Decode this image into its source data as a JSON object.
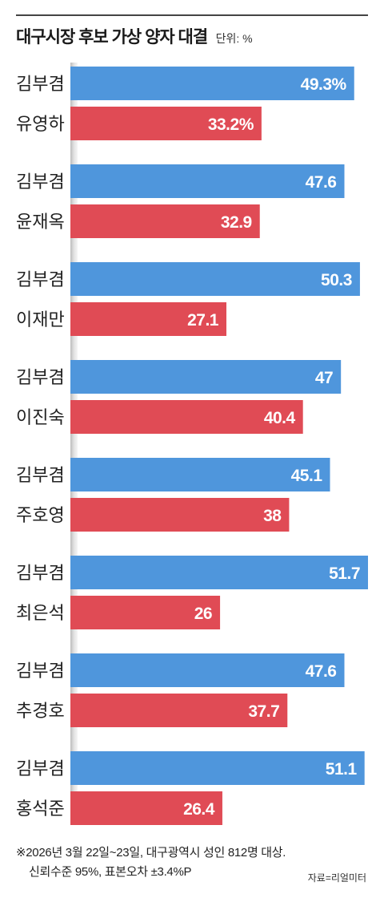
{
  "title": "대구시장 후보 가상 양자 대결",
  "unit": "단위: %",
  "chart_data": {
    "type": "bar",
    "orientation": "horizontal",
    "colors": {
      "first": "#4f96dc",
      "second": "#e04b55"
    },
    "pairs": [
      {
        "name1": "김부겸",
        "value1": 49.3,
        "label1": "49.3%",
        "name2": "유영하",
        "value2": 33.2,
        "label2": "33.2%"
      },
      {
        "name1": "김부겸",
        "value1": 47.6,
        "label1": "47.6",
        "name2": "윤재옥",
        "value2": 32.9,
        "label2": "32.9"
      },
      {
        "name1": "김부겸",
        "value1": 50.3,
        "label1": "50.3",
        "name2": "이재만",
        "value2": 27.1,
        "label2": "27.1"
      },
      {
        "name1": "김부겸",
        "value1": 47,
        "label1": "47",
        "name2": "이진숙",
        "value2": 40.4,
        "label2": "40.4"
      },
      {
        "name1": "김부겸",
        "value1": 45.1,
        "label1": "45.1",
        "name2": "주호영",
        "value2": 38,
        "label2": "38"
      },
      {
        "name1": "김부겸",
        "value1": 51.7,
        "label1": "51.7",
        "name2": "최은석",
        "value2": 26,
        "label2": "26"
      },
      {
        "name1": "김부겸",
        "value1": 47.6,
        "label1": "47.6",
        "name2": "추경호",
        "value2": 37.7,
        "label2": "37.7"
      },
      {
        "name1": "김부겸",
        "value1": 51.1,
        "label1": "51.1",
        "name2": "홍석준",
        "value2": 26.4,
        "label2": "26.4"
      }
    ],
    "xlim": [
      0,
      51.7
    ]
  },
  "footnote": {
    "line1": "※2026년 3월 22일~23일, 대구광역시 성인 812명 대상.",
    "line2": "신뢰수준 95%, 표본오차 ±3.4%P"
  },
  "source": "자료=리얼미터"
}
